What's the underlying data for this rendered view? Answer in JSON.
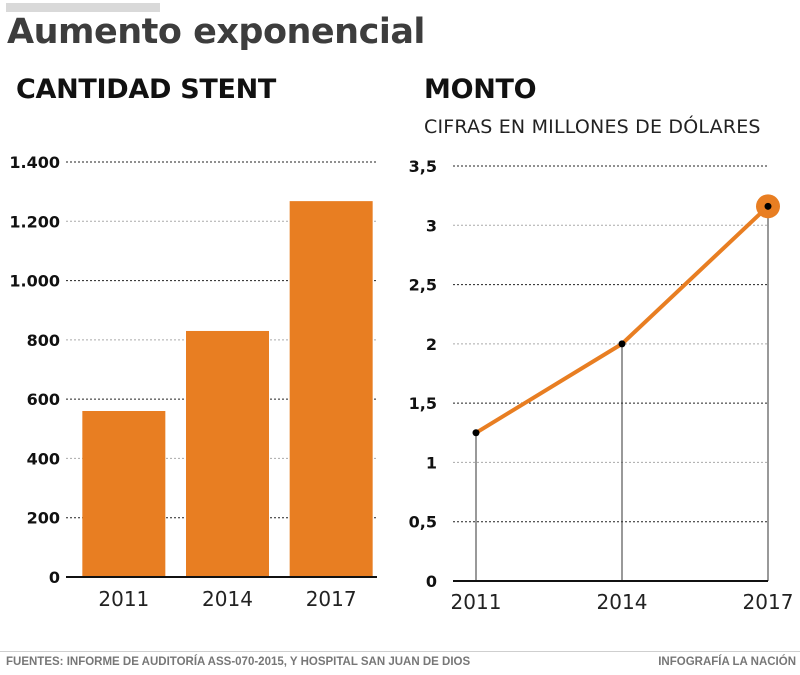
{
  "header": {
    "title": "Aumento exponencial"
  },
  "footer": {
    "sources": "FUENTES: INFORME DE AUDITORÍA ASS-070-2015, Y HOSPITAL SAN JUAN DE DIOS",
    "credit": "INFOGRAFÍA LA NACIÓN"
  },
  "colors": {
    "accent": "#e87e22",
    "axis": "#111111",
    "title": "#3d3d3d"
  },
  "chart_data": [
    {
      "type": "bar",
      "title": "CANTIDAD STENT",
      "subtitle": "",
      "xlabel": "",
      "ylabel": "",
      "categories": [
        "2011",
        "2014",
        "2017"
      ],
      "values": [
        560,
        830,
        1268
      ],
      "ylim": [
        0,
        1400
      ],
      "yticks": [
        0,
        200,
        400,
        600,
        800,
        1000,
        1200,
        1400
      ],
      "ytick_labels": [
        "0",
        "200",
        "400",
        "600",
        "800",
        "1.000",
        "1.200",
        "1.400"
      ],
      "grid": true,
      "legend": "none"
    },
    {
      "type": "line",
      "title": "MONTO",
      "subtitle": "CIFRAS EN MILLONES DE DÓLARES",
      "xlabel": "",
      "ylabel": "",
      "categories": [
        "2011",
        "2014",
        "2017"
      ],
      "values": [
        1.25,
        2.0,
        3.16
      ],
      "ylim": [
        0,
        3.5
      ],
      "yticks": [
        0,
        0.5,
        1,
        1.5,
        2,
        2.5,
        3,
        3.5
      ],
      "ytick_labels": [
        "0",
        "0,5",
        "1",
        "1,5",
        "2",
        "2,5",
        "3",
        "3,5"
      ],
      "grid": true,
      "legend": "none",
      "highlight": "2017"
    }
  ]
}
